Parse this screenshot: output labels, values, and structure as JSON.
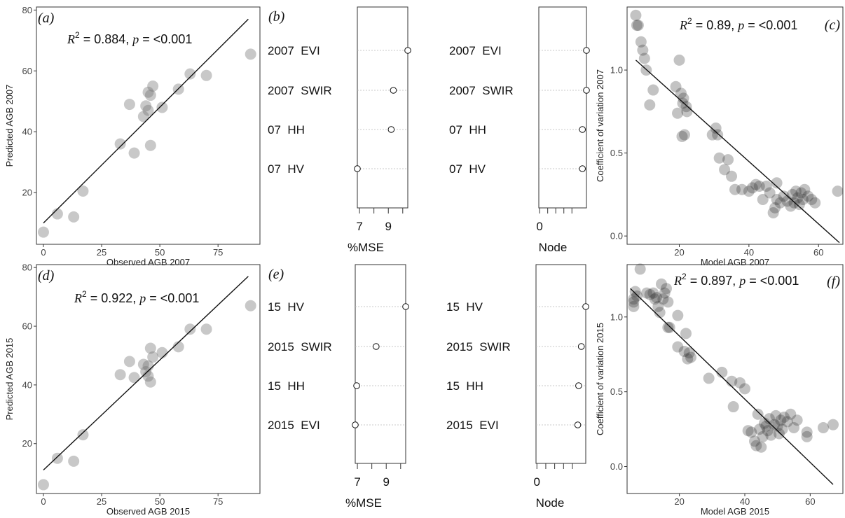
{
  "chart_data": [
    {
      "id": "a",
      "type": "scatter",
      "panel_label": "(a)",
      "xlabel": "Observed AGB 2007",
      "ylabel": "Predicted AGB 2007",
      "xlim": [
        -3,
        93
      ],
      "ylim": [
        3,
        81
      ],
      "xticks": [
        0,
        25,
        50,
        75
      ],
      "yticks": [
        20,
        40,
        60,
        80
      ],
      "stat_r2": "0.884",
      "stat_p": "<0.001",
      "points": [
        {
          "x": 0,
          "y": 7
        },
        {
          "x": 6,
          "y": 13
        },
        {
          "x": 13,
          "y": 12
        },
        {
          "x": 17,
          "y": 20.5
        },
        {
          "x": 33,
          "y": 36
        },
        {
          "x": 37,
          "y": 49
        },
        {
          "x": 39,
          "y": 33
        },
        {
          "x": 43,
          "y": 45
        },
        {
          "x": 44,
          "y": 48.5
        },
        {
          "x": 45,
          "y": 53
        },
        {
          "x": 45,
          "y": 47
        },
        {
          "x": 46,
          "y": 35.5
        },
        {
          "x": 46,
          "y": 52
        },
        {
          "x": 47,
          "y": 55
        },
        {
          "x": 51,
          "y": 48
        },
        {
          "x": 58,
          "y": 54
        },
        {
          "x": 63,
          "y": 59
        },
        {
          "x": 70,
          "y": 58.5
        },
        {
          "x": 89,
          "y": 65.5
        }
      ],
      "fit_line": [
        {
          "x": 0,
          "y": 10
        },
        {
          "x": 88,
          "y": 77
        }
      ]
    },
    {
      "id": "b",
      "type": "dotplot",
      "panel_label": "(b)",
      "variables": [
        "2007  EVI",
        "2007  SWIR",
        "07  HH",
        "07  HV"
      ],
      "mse": {
        "xlabel": "%MSE",
        "xlim": [
          6.85,
          10.35
        ],
        "xticks": [
          7,
          8,
          9,
          10
        ],
        "xtick_labels": [
          "7",
          "",
          "9",
          ""
        ],
        "values": [
          10.35,
          9.35,
          9.2,
          6.85
        ]
      },
      "node": {
        "xlabel": "Node",
        "xlim": [
          -0.01,
          0.58
        ],
        "xticks": [
          0,
          0.1,
          0.2,
          0.3,
          0.4
        ],
        "xtick_labels": [
          "0",
          "",
          "",
          "",
          ""
        ],
        "values": [
          0.58,
          0.58,
          0.53,
          0.53
        ]
      }
    },
    {
      "id": "c",
      "type": "scatter",
      "panel_label": "(c)",
      "xlabel": "Model AGB 2007",
      "ylabel": "Coefficient of variation 2007",
      "xlim": [
        5,
        67
      ],
      "ylim": [
        -0.05,
        1.38
      ],
      "xticks": [
        20,
        40,
        60
      ],
      "yticks": [
        0.0,
        0.5,
        1.0
      ],
      "ytick_labels": [
        "0.0",
        "0.5",
        "1.0"
      ],
      "stat_r2": "0.89",
      "stat_p": "<0.001",
      "points": [
        {
          "x": 7.5,
          "y": 1.33
        },
        {
          "x": 7.8,
          "y": 1.27
        },
        {
          "x": 8.2,
          "y": 1.27
        },
        {
          "x": 9,
          "y": 1.17
        },
        {
          "x": 9.5,
          "y": 1.12
        },
        {
          "x": 10,
          "y": 1.07
        },
        {
          "x": 10.5,
          "y": 1.0
        },
        {
          "x": 11.5,
          "y": 0.79
        },
        {
          "x": 12.5,
          "y": 0.88
        },
        {
          "x": 19,
          "y": 0.9
        },
        {
          "x": 19.5,
          "y": 0.74
        },
        {
          "x": 20,
          "y": 1.06
        },
        {
          "x": 20.5,
          "y": 0.86
        },
        {
          "x": 21,
          "y": 0.8
        },
        {
          "x": 21.2,
          "y": 0.83
        },
        {
          "x": 21.5,
          "y": 0.61
        },
        {
          "x": 22,
          "y": 0.78
        },
        {
          "x": 22.2,
          "y": 0.75
        },
        {
          "x": 20.8,
          "y": 0.6
        },
        {
          "x": 29.5,
          "y": 0.61
        },
        {
          "x": 30.5,
          "y": 0.65
        },
        {
          "x": 31,
          "y": 0.61
        },
        {
          "x": 31.5,
          "y": 0.47
        },
        {
          "x": 33,
          "y": 0.4
        },
        {
          "x": 34,
          "y": 0.46
        },
        {
          "x": 35,
          "y": 0.36
        },
        {
          "x": 36,
          "y": 0.28
        },
        {
          "x": 38,
          "y": 0.28
        },
        {
          "x": 40,
          "y": 0.27
        },
        {
          "x": 41,
          "y": 0.29
        },
        {
          "x": 42,
          "y": 0.31
        },
        {
          "x": 43,
          "y": 0.3
        },
        {
          "x": 44,
          "y": 0.22
        },
        {
          "x": 45,
          "y": 0.3
        },
        {
          "x": 46,
          "y": 0.26
        },
        {
          "x": 47,
          "y": 0.14
        },
        {
          "x": 47.5,
          "y": 0.17
        },
        {
          "x": 48,
          "y": 0.22
        },
        {
          "x": 48,
          "y": 0.32
        },
        {
          "x": 49,
          "y": 0.2
        },
        {
          "x": 50,
          "y": 0.24
        },
        {
          "x": 51,
          "y": 0.21
        },
        {
          "x": 52,
          "y": 0.18
        },
        {
          "x": 52.5,
          "y": 0.25
        },
        {
          "x": 53,
          "y": 0.2
        },
        {
          "x": 53.5,
          "y": 0.27
        },
        {
          "x": 54,
          "y": 0.23
        },
        {
          "x": 54.5,
          "y": 0.19
        },
        {
          "x": 55,
          "y": 0.26
        },
        {
          "x": 55.5,
          "y": 0.22
        },
        {
          "x": 56,
          "y": 0.28
        },
        {
          "x": 57,
          "y": 0.24
        },
        {
          "x": 58,
          "y": 0.22
        },
        {
          "x": 59,
          "y": 0.2
        },
        {
          "x": 65.5,
          "y": 0.27
        }
      ],
      "fit_line": [
        {
          "x": 7.5,
          "y": 1.06
        },
        {
          "x": 66,
          "y": -0.04
        }
      ]
    },
    {
      "id": "d",
      "type": "scatter",
      "panel_label": "(d)",
      "xlabel": "Observed AGB 2015",
      "ylabel": "Predicted AGB 2015",
      "xlim": [
        -3,
        93
      ],
      "ylim": [
        3,
        81
      ],
      "xticks": [
        0,
        25,
        50,
        75
      ],
      "yticks": [
        20,
        40,
        60,
        80
      ],
      "stat_r2": "0.922",
      "stat_p": "<0.001",
      "points": [
        {
          "x": 0,
          "y": 6
        },
        {
          "x": 6,
          "y": 15
        },
        {
          "x": 13,
          "y": 14
        },
        {
          "x": 17,
          "y": 23
        },
        {
          "x": 33,
          "y": 43.5
        },
        {
          "x": 37,
          "y": 48
        },
        {
          "x": 39,
          "y": 42.5
        },
        {
          "x": 43,
          "y": 47
        },
        {
          "x": 44,
          "y": 44.5
        },
        {
          "x": 45,
          "y": 46.5
        },
        {
          "x": 45,
          "y": 43
        },
        {
          "x": 46,
          "y": 41
        },
        {
          "x": 46,
          "y": 52.5
        },
        {
          "x": 47,
          "y": 49.5
        },
        {
          "x": 51,
          "y": 51
        },
        {
          "x": 58,
          "y": 53
        },
        {
          "x": 63,
          "y": 59
        },
        {
          "x": 70,
          "y": 59
        },
        {
          "x": 89,
          "y": 67
        }
      ],
      "fit_line": [
        {
          "x": 0,
          "y": 11
        },
        {
          "x": 88,
          "y": 77
        }
      ]
    },
    {
      "id": "e",
      "type": "dotplot",
      "panel_label": "(e)",
      "variables": [
        "15  HV",
        "2015  SWIR",
        "15  HH",
        "2015  EVI"
      ],
      "mse": {
        "xlabel": "%MSE",
        "xlim": [
          6.85,
          10.35
        ],
        "xticks": [
          7,
          8,
          9,
          10
        ],
        "xtick_labels": [
          "7",
          "",
          "9",
          ""
        ],
        "values": [
          10.35,
          8.3,
          6.95,
          6.85
        ]
      },
      "node": {
        "xlabel": "Node",
        "xlim": [
          -0.01,
          0.55
        ],
        "xticks": [
          0,
          0.1,
          0.2,
          0.3,
          0.4
        ],
        "xtick_labels": [
          "0",
          "",
          "",
          "",
          ""
        ],
        "values": [
          0.55,
          0.5,
          0.47,
          0.46
        ]
      }
    },
    {
      "id": "f",
      "type": "scatter",
      "panel_label": "(f)",
      "xlabel": "Model AGB 2015",
      "ylabel": "Coefficient of variation 2015",
      "xlim": [
        4,
        70
      ],
      "ylim": [
        -0.18,
        1.35
      ],
      "xticks": [
        20,
        40,
        60
      ],
      "yticks": [
        0.0,
        0.5,
        1.0
      ],
      "ytick_labels": [
        "0.0",
        "0.5",
        "1.0"
      ],
      "stat_r2": "0.897",
      "stat_p": "<0.001",
      "points": [
        {
          "x": 6,
          "y": 1.07
        },
        {
          "x": 6,
          "y": 1.1
        },
        {
          "x": 6,
          "y": 1.12
        },
        {
          "x": 6.5,
          "y": 1.17
        },
        {
          "x": 7,
          "y": 1.14
        },
        {
          "x": 8,
          "y": 1.32
        },
        {
          "x": 10,
          "y": 1.16
        },
        {
          "x": 11,
          "y": 1.15
        },
        {
          "x": 12,
          "y": 1.16
        },
        {
          "x": 12.5,
          "y": 1.12
        },
        {
          "x": 13,
          "y": 1.13
        },
        {
          "x": 13.5,
          "y": 1.07
        },
        {
          "x": 14,
          "y": 1.03
        },
        {
          "x": 14.5,
          "y": 1.22
        },
        {
          "x": 15,
          "y": 1.12
        },
        {
          "x": 15.5,
          "y": 1.16
        },
        {
          "x": 16,
          "y": 1.19
        },
        {
          "x": 16.5,
          "y": 1.1
        },
        {
          "x": 16.5,
          "y": 0.93
        },
        {
          "x": 17,
          "y": 0.93
        },
        {
          "x": 19.5,
          "y": 1.01
        },
        {
          "x": 19.5,
          "y": 0.8
        },
        {
          "x": 21.5,
          "y": 0.77
        },
        {
          "x": 22,
          "y": 0.89
        },
        {
          "x": 22.5,
          "y": 0.72
        },
        {
          "x": 23,
          "y": 0.76
        },
        {
          "x": 23.5,
          "y": 0.73
        },
        {
          "x": 29,
          "y": 0.59
        },
        {
          "x": 33,
          "y": 0.63
        },
        {
          "x": 36,
          "y": 0.57
        },
        {
          "x": 36.5,
          "y": 0.4
        },
        {
          "x": 38.5,
          "y": 0.56
        },
        {
          "x": 40,
          "y": 0.52
        },
        {
          "x": 41,
          "y": 0.24
        },
        {
          "x": 42,
          "y": 0.23
        },
        {
          "x": 43,
          "y": 0.17
        },
        {
          "x": 43.5,
          "y": 0.14
        },
        {
          "x": 44,
          "y": 0.35
        },
        {
          "x": 44.5,
          "y": 0.25
        },
        {
          "x": 45,
          "y": 0.13
        },
        {
          "x": 45.5,
          "y": 0.2
        },
        {
          "x": 46,
          "y": 0.29
        },
        {
          "x": 46.5,
          "y": 0.27
        },
        {
          "x": 47,
          "y": 0.24
        },
        {
          "x": 47.5,
          "y": 0.32
        },
        {
          "x": 48,
          "y": 0.21
        },
        {
          "x": 49,
          "y": 0.28
        },
        {
          "x": 49.5,
          "y": 0.34
        },
        {
          "x": 50,
          "y": 0.27
        },
        {
          "x": 50.5,
          "y": 0.22
        },
        {
          "x": 51,
          "y": 0.31
        },
        {
          "x": 51.5,
          "y": 0.25
        },
        {
          "x": 52,
          "y": 0.33
        },
        {
          "x": 53,
          "y": 0.3
        },
        {
          "x": 54,
          "y": 0.35
        },
        {
          "x": 55,
          "y": 0.26
        },
        {
          "x": 56,
          "y": 0.31
        },
        {
          "x": 59,
          "y": 0.23
        },
        {
          "x": 59,
          "y": 0.2
        },
        {
          "x": 64,
          "y": 0.26
        },
        {
          "x": 67,
          "y": 0.28
        }
      ],
      "fit_line": [
        {
          "x": 5,
          "y": 1.19
        },
        {
          "x": 67,
          "y": -0.12
        }
      ]
    }
  ]
}
